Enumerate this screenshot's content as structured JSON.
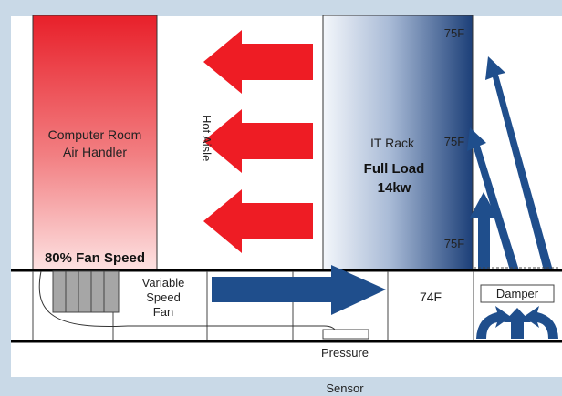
{
  "air_handler": {
    "line1": "Computer Room",
    "line2": "Air Handler",
    "fan_speed": "80% Fan Speed"
  },
  "hot_aisle": {
    "label": "Hot Aisle"
  },
  "rack": {
    "title": "IT Rack",
    "load_line1": "Full Load",
    "load_line2": "14kw",
    "temp_top": "75F",
    "temp_mid": "75F",
    "temp_bottom": "75F"
  },
  "underfloor": {
    "fan_line1": "Variable",
    "fan_line2": "Speed",
    "fan_line3": "Fan",
    "temperature": "74F",
    "damper": "Damper"
  },
  "sensor": {
    "line1": "Pressure",
    "line2": "Sensor"
  },
  "colors": {
    "frame": "#c9d9e7",
    "hot_arrow": "#ee1c24",
    "cool_arrow": "#1f4e8c",
    "rack_dark": "#1c3f78",
    "handler_top": "#e8202a",
    "handler_bottom": "#fbd8d8"
  }
}
